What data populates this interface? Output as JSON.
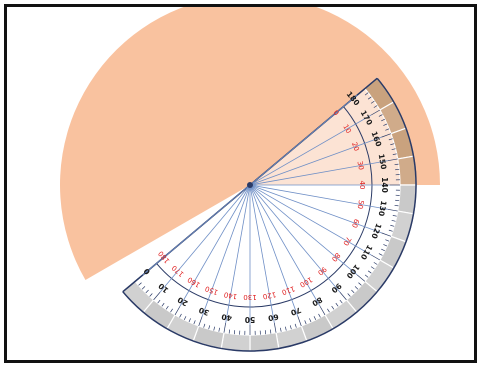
{
  "colors": {
    "frame": "#111111",
    "shaded_angle": "#f9c29f",
    "protractor_band_gray": "#c9c9c9",
    "protractor_band_tan": "#c9a27e",
    "outline": "#2a3a66",
    "rays": "#6f8fc6",
    "outer_scale": "#1a1a1a",
    "inner_scale": "#e01e1e"
  },
  "diagram": {
    "shaded_angle_deg": 210,
    "outer_scale_labels": [
      "0",
      "10",
      "20",
      "30",
      "40",
      "50",
      "60",
      "70",
      "80",
      "90",
      "100",
      "110",
      "120",
      "130",
      "140",
      "150",
      "160",
      "170",
      "180"
    ],
    "inner_scale_labels": [
      "180",
      "170",
      "160",
      "150",
      "140",
      "130",
      "120",
      "110",
      "100",
      "90",
      "80",
      "70",
      "60",
      "50",
      "40",
      "30",
      "20",
      "10",
      "0"
    ]
  }
}
